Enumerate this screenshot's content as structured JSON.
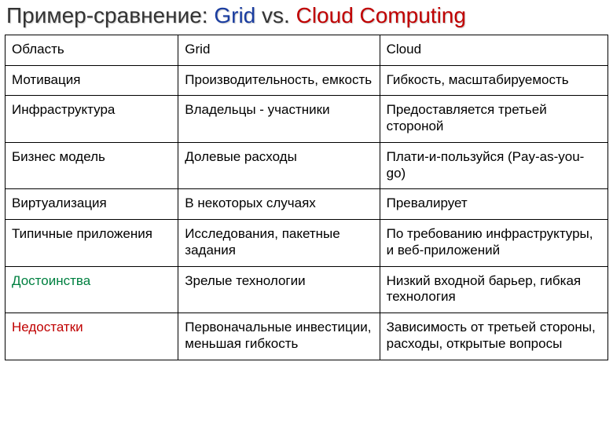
{
  "title": {
    "black": "Пример-сравнение: ",
    "blue": "Grid ",
    "vs": "vs.",
    "red": " Cloud Computing"
  },
  "columns": {
    "c1": "Область",
    "c2": "Grid",
    "c3": "Cloud"
  },
  "rows": {
    "motivation": {
      "label": "Мотивация",
      "grid": "Производительность, емкость",
      "cloud": "Гибкость, масштабируемость"
    },
    "infrastructure": {
      "label": "Инфраструктура",
      "grid": "Владельцы - участники",
      "cloud": "Предоставляется третьей стороной"
    },
    "business": {
      "label": "Бизнес модель",
      "grid": "Долевые расходы",
      "cloud": "Плати-и-пользуйся (Pay-as-you-go)"
    },
    "virtualization": {
      "label": "Виртуализация",
      "grid": "В некоторых случаях",
      "cloud": "Превалирует"
    },
    "applications": {
      "label": "Типичные приложения",
      "grid": "Исследования, пакетные задания",
      "cloud": "По требованию инфраструктуры, и веб-приложений"
    },
    "advantages": {
      "label": "Достоинства",
      "grid": "Зрелые технологии",
      "cloud": "Низкий входной барьер, гибкая технология"
    },
    "disadvantages": {
      "label": "Недостатки",
      "grid": "Первоначальные инвестиции, меньшая гибкость",
      "cloud": "Зависимость от третьей стороны, расходы, открытые вопросы"
    }
  },
  "style": {
    "label_colors": {
      "advantages": "#008040",
      "disadvantages": "#c00000"
    },
    "border_color": "#000000",
    "background": "#ffffff",
    "font_size_title": 28,
    "font_size_cell": 17
  }
}
